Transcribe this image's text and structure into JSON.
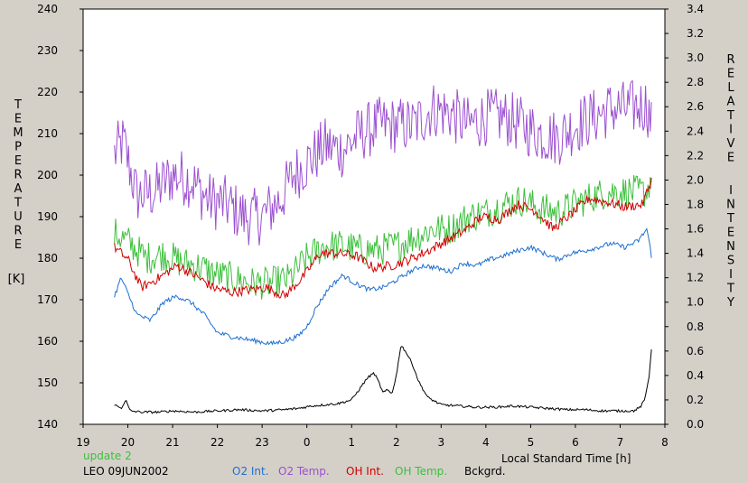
{
  "chart_data": {
    "type": "line",
    "xlabel": "Local Standard Time [h]",
    "x_ticks": [
      "19",
      "20",
      "21",
      "22",
      "23",
      "0",
      "1",
      "2",
      "3",
      "4",
      "5",
      "6",
      "7",
      "8"
    ],
    "ylabel_left_letters": [
      "T",
      "E",
      "M",
      "P",
      "E",
      "R",
      "A",
      "T",
      "U",
      "R",
      "E"
    ],
    "ylabel_left_unit": "[K]",
    "ylabel_right_word1": [
      "R",
      "E",
      "L",
      "A",
      "T",
      "I",
      "V",
      "E"
    ],
    "ylabel_right_word2": [
      "I",
      "N",
      "T",
      "E",
      "N",
      "S",
      "I",
      "T",
      "Y"
    ],
    "ylim_left": [
      140,
      240
    ],
    "yticks_left": [
      "140",
      "150",
      "160",
      "170",
      "180",
      "190",
      "200",
      "210",
      "220",
      "230",
      "240"
    ],
    "ylim_right": [
      0.0,
      3.4
    ],
    "yticks_right": [
      "0.0",
      "0.2",
      "0.4",
      "0.6",
      "0.8",
      "1.0",
      "1.2",
      "1.4",
      "1.6",
      "1.8",
      "2.0",
      "2.2",
      "2.4",
      "2.6",
      "2.8",
      "3.0",
      "3.2",
      "3.4"
    ],
    "update_text": "update 2",
    "footer_site": "LEO 09JUN2002",
    "legend": [
      {
        "name": "O2 Int.",
        "color": "#1e6fd0"
      },
      {
        "name": "O2 Temp.",
        "color": "#9b4fd0"
      },
      {
        "name": "OH Int.",
        "color": "#d00000"
      },
      {
        "name": "OH Temp.",
        "color": "#3cbf3c"
      },
      {
        "name": "Bckgrd.",
        "color": "#000000"
      }
    ],
    "series": [
      {
        "name": "O2 Temp.",
        "axis": "left",
        "color": "#9b4fd0",
        "x": [
          19.7,
          19.9,
          20.2,
          20.6,
          21.0,
          21.4,
          21.8,
          22.2,
          22.6,
          23.0,
          23.4,
          23.7,
          24.0,
          24.4,
          24.8,
          25.2,
          25.6,
          26.0,
          26.4,
          26.8,
          27.2,
          27.6,
          28.0,
          28.4,
          28.8,
          29.2,
          29.6,
          30.0,
          30.4,
          30.8,
          31.2,
          31.6,
          31.7
        ],
        "y": [
          205,
          208,
          195,
          196,
          200,
          199,
          194,
          193,
          190,
          190,
          194,
          200,
          203,
          207,
          206,
          210,
          212,
          212,
          212,
          216,
          215,
          212,
          214,
          214,
          212,
          210,
          209,
          212,
          214,
          216,
          216,
          217,
          212
        ],
        "amp": 7
      },
      {
        "name": "OH Temp.",
        "axis": "left",
        "color": "#3cbf3c",
        "x": [
          19.7,
          20.0,
          20.4,
          20.8,
          21.2,
          21.6,
          22.0,
          22.4,
          22.8,
          23.2,
          23.6,
          24.0,
          24.4,
          24.8,
          25.2,
          25.6,
          26.0,
          26.4,
          26.8,
          27.2,
          27.6,
          28.0,
          28.4,
          28.8,
          29.2,
          29.6,
          30.0,
          30.4,
          30.8,
          31.2,
          31.6,
          31.7
        ],
        "y": [
          186,
          184,
          180,
          181,
          179,
          178,
          176,
          175,
          174,
          174,
          175,
          180,
          183,
          183,
          182,
          182,
          183,
          185,
          187,
          187,
          190,
          191,
          193,
          194,
          192,
          191,
          193,
          195,
          196,
          196,
          196,
          200
        ],
        "amp": 4
      },
      {
        "name": "OH Int.",
        "axis": "right",
        "color": "#d00000",
        "x": [
          19.7,
          20.0,
          20.3,
          20.7,
          21.1,
          21.5,
          21.9,
          22.3,
          22.7,
          23.1,
          23.5,
          23.9,
          24.3,
          24.7,
          25.1,
          25.5,
          25.9,
          26.3,
          26.7,
          27.1,
          27.5,
          27.9,
          28.3,
          28.7,
          29.1,
          29.5,
          29.9,
          30.3,
          30.7,
          31.1,
          31.5,
          31.7
        ],
        "y": [
          1.45,
          1.35,
          1.12,
          1.2,
          1.3,
          1.22,
          1.12,
          1.08,
          1.1,
          1.12,
          1.05,
          1.2,
          1.4,
          1.4,
          1.38,
          1.28,
          1.3,
          1.35,
          1.42,
          1.5,
          1.58,
          1.7,
          1.68,
          1.8,
          1.75,
          1.6,
          1.72,
          1.85,
          1.82,
          1.78,
          1.8,
          2.0
        ],
        "amp": 0.04
      },
      {
        "name": "O2 Int.",
        "axis": "right",
        "color": "#1e6fd0",
        "x": [
          19.7,
          19.85,
          20.2,
          20.5,
          20.8,
          21.1,
          21.4,
          21.7,
          22.0,
          22.3,
          22.6,
          22.9,
          23.2,
          23.5,
          23.8,
          24.0,
          24.2,
          24.5,
          24.8,
          25.1,
          25.4,
          25.7,
          26.0,
          26.3,
          26.6,
          26.9,
          27.2,
          27.5,
          27.8,
          28.1,
          28.4,
          28.7,
          29.0,
          29.3,
          29.6,
          29.9,
          30.2,
          30.5,
          30.8,
          31.1,
          31.4,
          31.6,
          31.7
        ],
        "y": [
          1.05,
          1.2,
          0.9,
          0.85,
          1.0,
          1.05,
          1.0,
          0.9,
          0.75,
          0.72,
          0.7,
          0.68,
          0.66,
          0.68,
          0.72,
          0.8,
          0.95,
          1.12,
          1.22,
          1.15,
          1.1,
          1.12,
          1.18,
          1.25,
          1.3,
          1.28,
          1.25,
          1.32,
          1.3,
          1.35,
          1.38,
          1.42,
          1.45,
          1.4,
          1.35,
          1.4,
          1.42,
          1.45,
          1.48,
          1.45,
          1.5,
          1.6,
          1.38
        ],
        "amp": 0.02
      },
      {
        "name": "Bckgrd.",
        "axis": "right",
        "color": "#000000",
        "x": [
          19.7,
          19.85,
          19.95,
          20.05,
          20.3,
          20.7,
          21.0,
          21.5,
          22.0,
          22.5,
          23.0,
          23.5,
          23.8,
          24.1,
          24.4,
          24.7,
          25.0,
          25.2,
          25.35,
          25.5,
          25.6,
          25.7,
          25.8,
          25.9,
          26.0,
          26.1,
          26.2,
          26.35,
          26.5,
          26.7,
          27.0,
          27.4,
          27.8,
          28.2,
          28.6,
          29.0,
          29.4,
          29.8,
          30.2,
          30.6,
          31.0,
          31.3,
          31.45,
          31.55,
          31.65,
          31.7
        ],
        "y": [
          0.16,
          0.13,
          0.2,
          0.11,
          0.1,
          0.1,
          0.11,
          0.1,
          0.11,
          0.12,
          0.11,
          0.12,
          0.13,
          0.15,
          0.16,
          0.17,
          0.2,
          0.3,
          0.38,
          0.42,
          0.35,
          0.26,
          0.28,
          0.25,
          0.4,
          0.65,
          0.6,
          0.5,
          0.35,
          0.22,
          0.16,
          0.15,
          0.14,
          0.14,
          0.15,
          0.14,
          0.13,
          0.12,
          0.12,
          0.11,
          0.11,
          0.11,
          0.14,
          0.2,
          0.4,
          0.62
        ],
        "amp": 0.01
      }
    ]
  }
}
